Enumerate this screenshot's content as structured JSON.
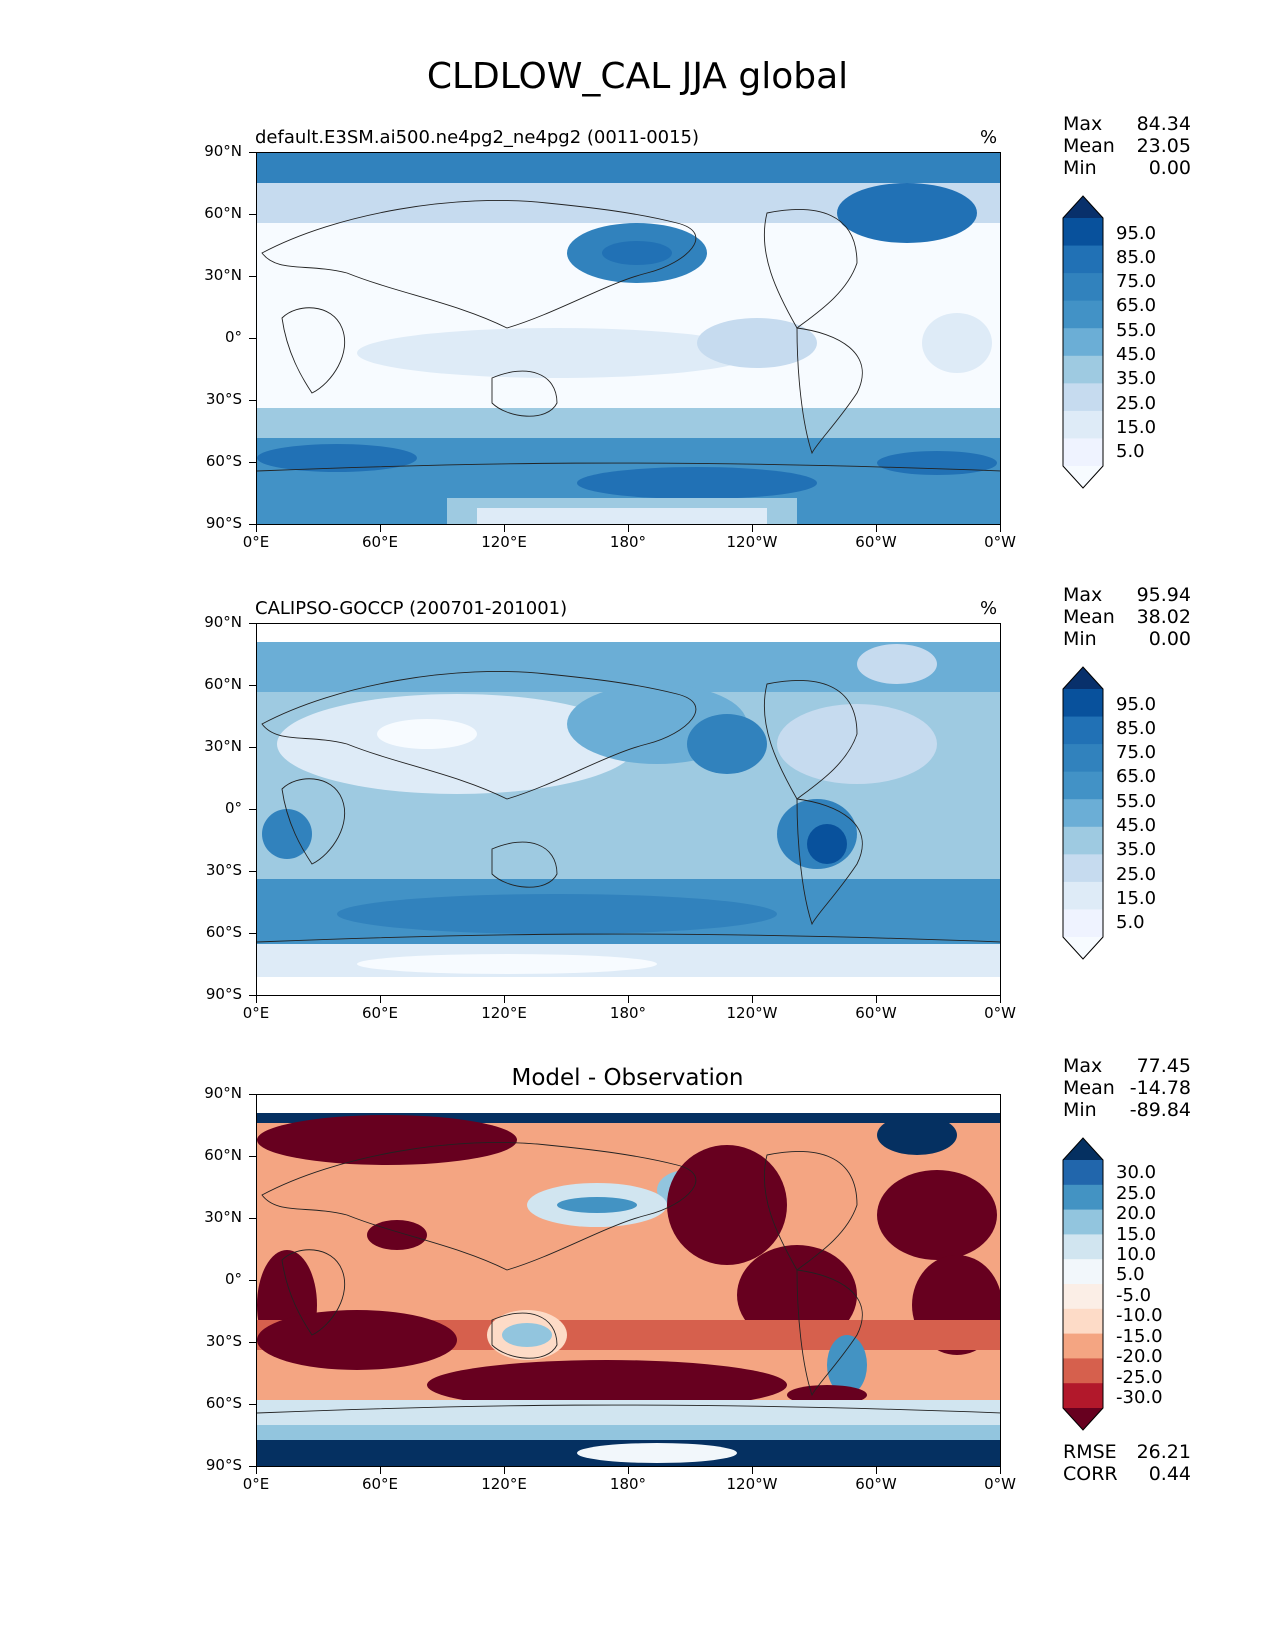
{
  "title": "CLDLOW_CAL JJA global",
  "chart_data": [
    {
      "type": "heatmap",
      "panel": "test",
      "title": "default.E3SM.ai500.ne4pg2_ne4pg2 (0011-0015)",
      "units": "%",
      "stats": {
        "max": "84.34",
        "mean": "23.05",
        "min": "0.00"
      },
      "colorbar": {
        "labels": [
          "95.0",
          "85.0",
          "75.0",
          "65.0",
          "55.0",
          "45.0",
          "35.0",
          "25.0",
          "15.0",
          "5.0"
        ],
        "colors": [
          "#08306b",
          "#08519c",
          "#2171b5",
          "#3182bd",
          "#4292c6",
          "#6baed6",
          "#9ecae1",
          "#c6dbef",
          "#deebf7",
          "#eff3ff",
          "#f7fbff"
        ]
      },
      "xticks": [
        "0°E",
        "60°E",
        "120°E",
        "180°",
        "120°W",
        "60°W",
        "0°W"
      ],
      "yticks": [
        "90°N",
        "60°N",
        "30°N",
        "0°",
        "30°S",
        "60°S",
        "90°S"
      ]
    },
    {
      "type": "heatmap",
      "panel": "reference",
      "title": "CALIPSO-GOCCP (200701-201001)",
      "units": "%",
      "stats": {
        "max": "95.94",
        "mean": "38.02",
        "min": "0.00"
      },
      "colorbar": {
        "labels": [
          "95.0",
          "85.0",
          "75.0",
          "65.0",
          "55.0",
          "45.0",
          "35.0",
          "25.0",
          "15.0",
          "5.0"
        ],
        "colors": [
          "#08306b",
          "#08519c",
          "#2171b5",
          "#3182bd",
          "#4292c6",
          "#6baed6",
          "#9ecae1",
          "#c6dbef",
          "#deebf7",
          "#eff3ff",
          "#f7fbff"
        ]
      },
      "xticks": [
        "0°E",
        "60°E",
        "120°E",
        "180°",
        "120°W",
        "60°W",
        "0°W"
      ],
      "yticks": [
        "90°N",
        "60°N",
        "30°N",
        "0°",
        "30°S",
        "60°S",
        "90°S"
      ]
    },
    {
      "type": "heatmap",
      "panel": "difference",
      "title": "Model - Observation",
      "units": "",
      "stats": {
        "max": "77.45",
        "mean": "-14.78",
        "min": "-89.84"
      },
      "rmse": "26.21",
      "corr": "0.44",
      "colorbar": {
        "labels": [
          "30.0",
          "25.0",
          "20.0",
          "15.0",
          "10.0",
          "5.0",
          "-5.0",
          "-10.0",
          "-15.0",
          "-20.0",
          "-25.0",
          "-30.0"
        ],
        "colors": [
          "#053061",
          "#2166ac",
          "#4393c3",
          "#92c5de",
          "#d1e5f0",
          "#f2f7fb",
          "#fbeee6",
          "#fddbc7",
          "#f4a582",
          "#d6604d",
          "#b2182b",
          "#67001f"
        ]
      },
      "xticks": [
        "0°E",
        "60°E",
        "120°E",
        "180°",
        "120°W",
        "60°W",
        "0°W"
      ],
      "yticks": [
        "90°N",
        "60°N",
        "30°N",
        "0°",
        "30°S",
        "60°S",
        "90°S"
      ]
    }
  ],
  "labels": {
    "max": "Max",
    "mean": "Mean",
    "min": "Min",
    "rmse": "RMSE",
    "corr": "CORR"
  }
}
